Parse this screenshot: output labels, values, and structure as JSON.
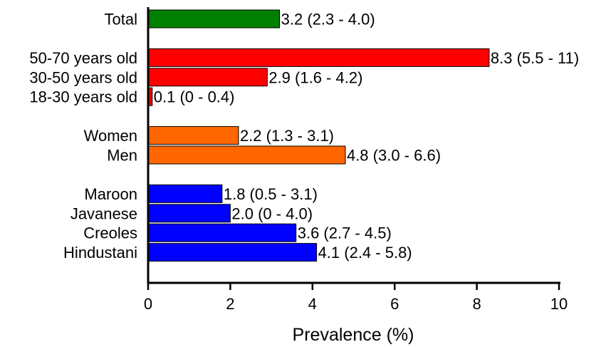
{
  "chart_data": {
    "type": "bar",
    "orientation": "horizontal",
    "xlabel": "Prevalence (%)",
    "ylabel": "",
    "xlim": [
      0,
      10
    ],
    "xticks": [
      "0",
      "2",
      "4",
      "6",
      "8",
      "10"
    ],
    "grid": false,
    "groups": [
      {
        "color": "#008000",
        "bars": [
          {
            "category": "Total",
            "value": 3.2,
            "label": "3.2 (2.3 - 4.0)"
          }
        ]
      },
      {
        "color": "#ff0000",
        "bars": [
          {
            "category": "50-70 years old",
            "value": 8.3,
            "label": "8.3 (5.5 - 11)"
          },
          {
            "category": "30-50 years old",
            "value": 2.9,
            "label": "2.9 (1.6 - 4.2)"
          },
          {
            "category": "18-30 years old",
            "value": 0.1,
            "label": "0.1 (0 - 0.4)"
          }
        ]
      },
      {
        "color": "#ff6600",
        "bars": [
          {
            "category": "Women",
            "value": 2.2,
            "label": "2.2 (1.3 - 3.1)"
          },
          {
            "category": "Men",
            "value": 4.8,
            "label": "4.8 (3.0 - 6.6)"
          }
        ]
      },
      {
        "color": "#0000ff",
        "bars": [
          {
            "category": "Maroon",
            "value": 1.8,
            "label": "1.8 (0.5 - 3.1)"
          },
          {
            "category": "Javanese",
            "value": 2.0,
            "label": "2.0 (0 - 4.0)"
          },
          {
            "category": "Creoles",
            "value": 3.6,
            "label": "3.6 (2.7 - 4.5)"
          },
          {
            "category": "Hindustani",
            "value": 4.1,
            "label": "4.1 (2.4 - 5.8)"
          }
        ]
      }
    ]
  }
}
